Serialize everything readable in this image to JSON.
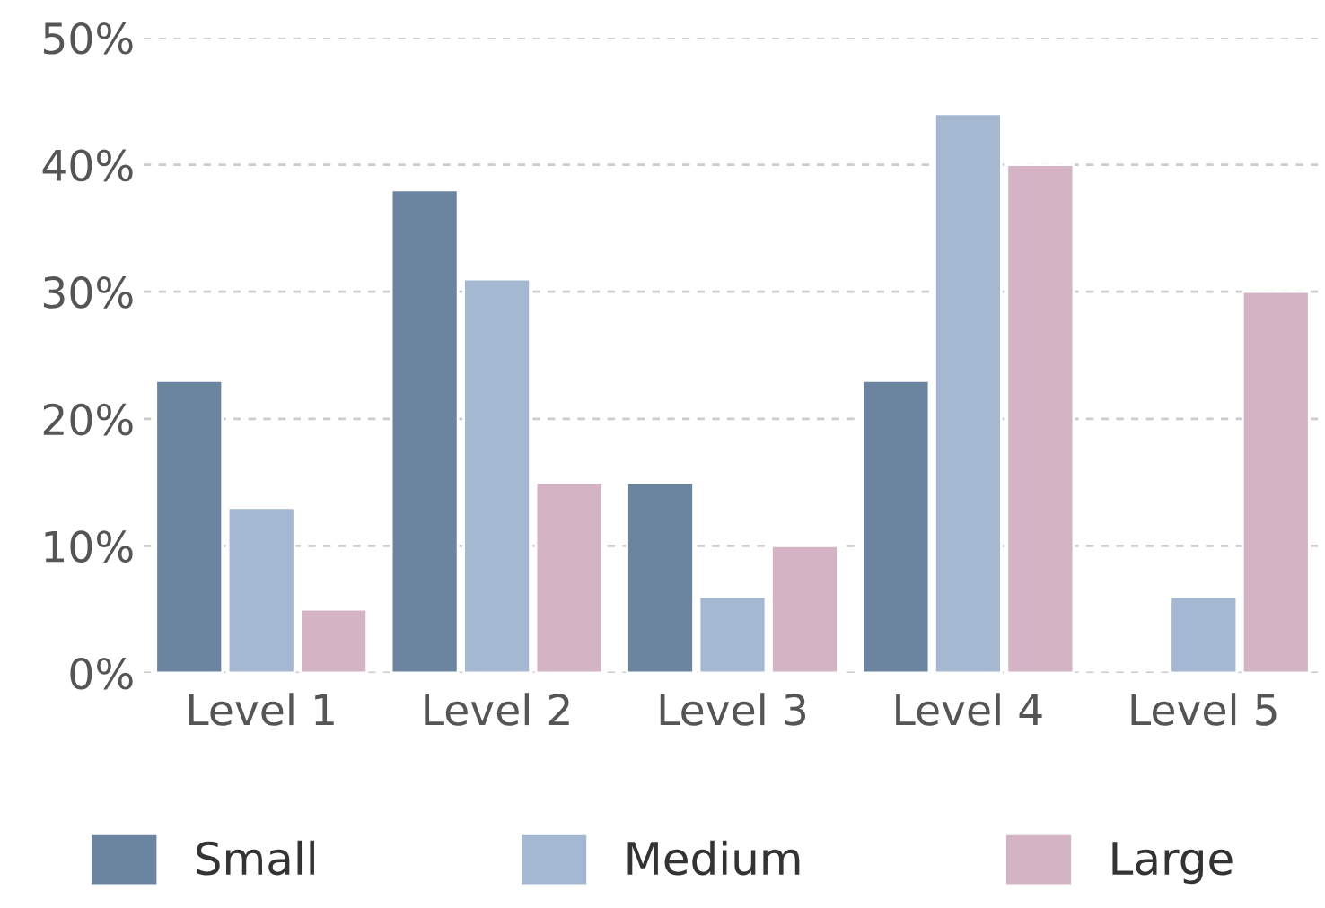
{
  "chart_data": {
    "type": "bar",
    "categories": [
      "Level 1",
      "Level 2",
      "Level 3",
      "Level 4",
      "Level 5"
    ],
    "series": [
      {
        "name": "Small",
        "color": "#6b84a0",
        "values": [
          23,
          38,
          15,
          23,
          null
        ]
      },
      {
        "name": "Medium",
        "color": "#a5b8d1",
        "values": [
          13,
          31,
          6,
          44,
          6
        ]
      },
      {
        "name": "Large",
        "color": "#d4b3c4",
        "values": [
          5,
          15,
          10,
          40,
          30
        ]
      }
    ],
    "ylim": [
      0,
      50
    ],
    "yticks": [
      {
        "value": 0,
        "label": "0%"
      },
      {
        "value": 10,
        "label": "10%"
      },
      {
        "value": 20,
        "label": "20%"
      },
      {
        "value": 30,
        "label": "30%"
      },
      {
        "value": 40,
        "label": "40%"
      },
      {
        "value": 50,
        "label": "50%"
      }
    ],
    "grid": "y",
    "legend": "bottom"
  }
}
